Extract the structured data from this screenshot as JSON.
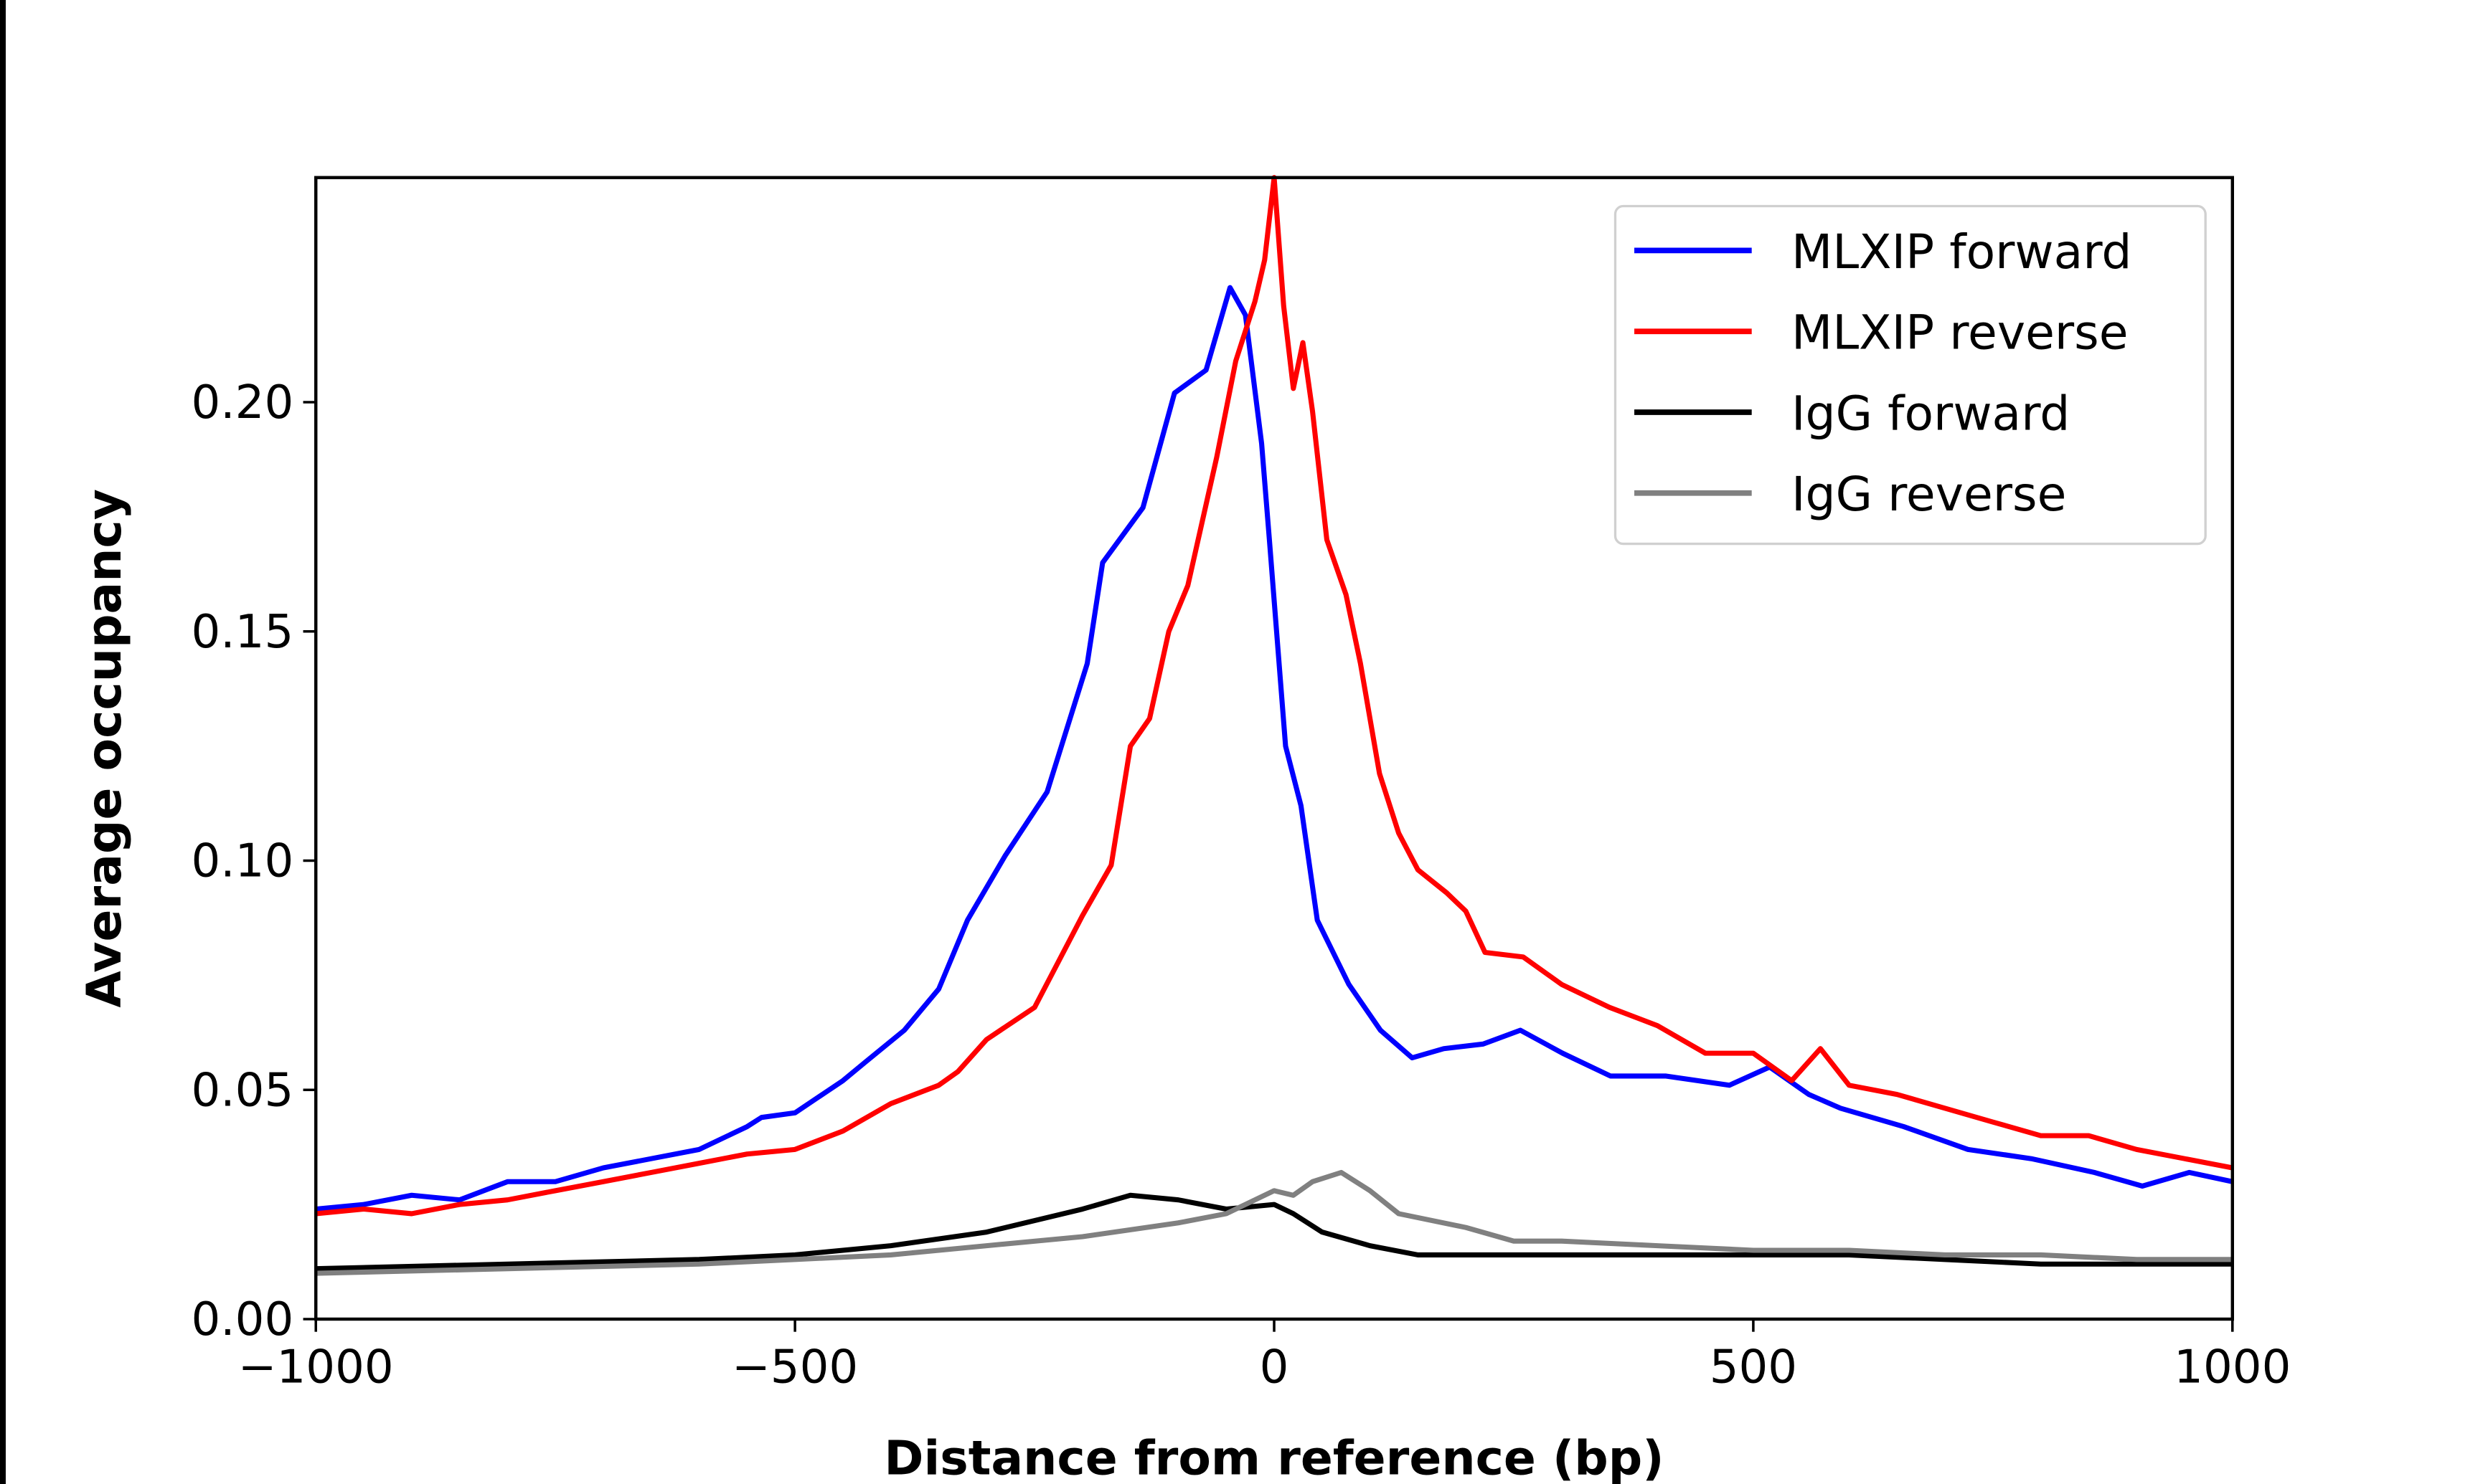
{
  "chart_data": {
    "type": "line",
    "title": "",
    "xlabel": "Distance from reference (bp)",
    "ylabel": "Average occupancy",
    "xlim": [
      -1000,
      1000
    ],
    "ylim": [
      0,
      0.249
    ],
    "xticks": [
      -1000,
      -500,
      0,
      500,
      1000
    ],
    "xtick_labels": [
      "−1000",
      "−500",
      "0",
      "500",
      "1000"
    ],
    "yticks": [
      0,
      0.05,
      0.1,
      0.15,
      0.2
    ],
    "ytick_labels": [
      "0.00",
      "0.05",
      "0.10",
      "0.15",
      "0.20"
    ],
    "grid": false,
    "legend_position": "top-right",
    "series": [
      {
        "name": "MLXIP forward",
        "color": "#0000ff",
        "x": [
          -1000,
          -950,
          -900,
          -850,
          -800,
          -750,
          -700,
          -650,
          -600,
          -550,
          -535,
          -500,
          -450,
          -427,
          -386,
          -350,
          -320,
          -281,
          -237,
          -195,
          -179,
          -137,
          -104,
          -71,
          -46,
          -30,
          -13,
          -5,
          12,
          28,
          45,
          78,
          111,
          144,
          177,
          218,
          257,
          301,
          351,
          409,
          475,
          517,
          558,
          591,
          657,
          724,
          790,
          856,
          906,
          955,
          1000
        ],
        "y": [
          0.024,
          0.025,
          0.027,
          0.026,
          0.03,
          0.03,
          0.033,
          0.035,
          0.037,
          0.042,
          0.044,
          0.045,
          0.052,
          0.056,
          0.063,
          0.072,
          0.087,
          0.101,
          0.115,
          0.143,
          0.165,
          0.177,
          0.202,
          0.207,
          0.225,
          0.219,
          0.191,
          0.17,
          0.125,
          0.112,
          0.087,
          0.073,
          0.063,
          0.057,
          0.059,
          0.06,
          0.063,
          0.058,
          0.053,
          0.053,
          0.051,
          0.055,
          0.049,
          0.046,
          0.042,
          0.037,
          0.035,
          0.032,
          0.029,
          0.032,
          0.03
        ]
      },
      {
        "name": "MLXIP reverse",
        "color": "#ff0000",
        "x": [
          -1000,
          -950,
          -900,
          -850,
          -800,
          -750,
          -700,
          -650,
          -600,
          -550,
          -500,
          -450,
          -400,
          -350,
          -330,
          -300,
          -250,
          -200,
          -170,
          -150,
          -130,
          -110,
          -90,
          -60,
          -40,
          -20,
          -10,
          0,
          10,
          20,
          30,
          40,
          55,
          75,
          90,
          110,
          130,
          150,
          180,
          200,
          220,
          260,
          300,
          350,
          400,
          450,
          500,
          540,
          570,
          600,
          650,
          700,
          750,
          800,
          850,
          900,
          950,
          1000
        ],
        "y": [
          0.023,
          0.024,
          0.023,
          0.025,
          0.026,
          0.028,
          0.03,
          0.032,
          0.034,
          0.036,
          0.037,
          0.041,
          0.047,
          0.051,
          0.054,
          0.061,
          0.068,
          0.088,
          0.099,
          0.125,
          0.131,
          0.15,
          0.16,
          0.188,
          0.209,
          0.222,
          0.231,
          0.249,
          0.221,
          0.203,
          0.213,
          0.198,
          0.17,
          0.158,
          0.143,
          0.119,
          0.106,
          0.098,
          0.093,
          0.089,
          0.08,
          0.079,
          0.073,
          0.068,
          0.064,
          0.058,
          0.058,
          0.052,
          0.059,
          0.051,
          0.049,
          0.046,
          0.043,
          0.04,
          0.04,
          0.037,
          0.035,
          0.033
        ]
      },
      {
        "name": "IgG forward",
        "color": "#000000",
        "x": [
          -1000,
          -800,
          -600,
          -500,
          -400,
          -300,
          -200,
          -150,
          -100,
          -50,
          0,
          20,
          50,
          100,
          150,
          200,
          300,
          400,
          500,
          600,
          700,
          800,
          900,
          1000
        ],
        "y": [
          0.011,
          0.012,
          0.013,
          0.014,
          0.016,
          0.019,
          0.024,
          0.027,
          0.026,
          0.024,
          0.025,
          0.023,
          0.019,
          0.016,
          0.014,
          0.014,
          0.014,
          0.014,
          0.014,
          0.014,
          0.013,
          0.012,
          0.012,
          0.012
        ]
      },
      {
        "name": "IgG reverse",
        "color": "#808080",
        "x": [
          -1000,
          -800,
          -600,
          -500,
          -400,
          -300,
          -200,
          -100,
          -50,
          -20,
          0,
          20,
          40,
          70,
          100,
          130,
          200,
          250,
          300,
          400,
          500,
          600,
          700,
          800,
          900,
          1000
        ],
        "y": [
          0.01,
          0.011,
          0.012,
          0.013,
          0.014,
          0.016,
          0.018,
          0.021,
          0.023,
          0.026,
          0.028,
          0.027,
          0.03,
          0.032,
          0.028,
          0.023,
          0.02,
          0.017,
          0.017,
          0.016,
          0.015,
          0.015,
          0.014,
          0.014,
          0.013,
          0.013
        ]
      }
    ]
  }
}
